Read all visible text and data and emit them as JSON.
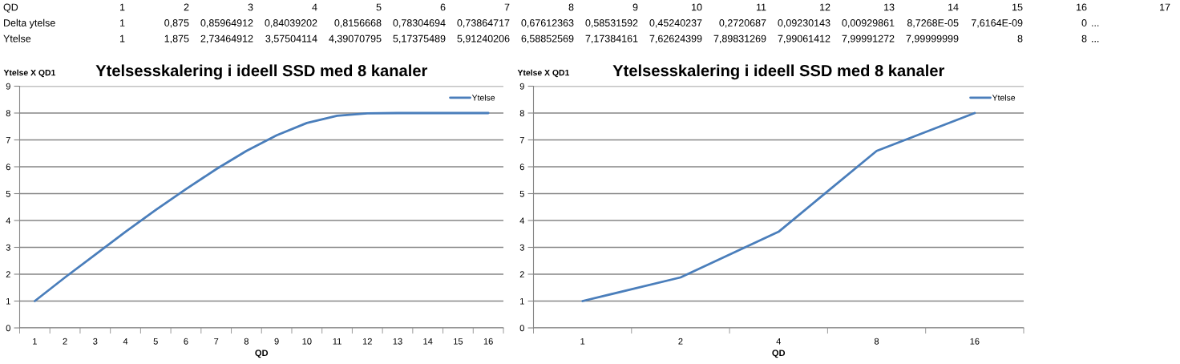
{
  "chart_data": [
    {
      "type": "heatmap",
      "xlabel": "QD",
      "categories": [
        "1",
        "2",
        "3",
        "4",
        "5",
        "6",
        "7",
        "8",
        "9",
        "10",
        "11",
        "12",
        "13",
        "14",
        "15",
        "16",
        "17"
      ],
      "y_categories": [
        "Delta ytelse",
        "Ytelse"
      ],
      "cells": [
        [
          null,
          null,
          null,
          null,
          null,
          null,
          null,
          null,
          null,
          null,
          null,
          null,
          null,
          null,
          null,
          null,
          null
        ],
        [
          null,
          null,
          null,
          null,
          null,
          null,
          null,
          null,
          null,
          null,
          null,
          null,
          null,
          null,
          null,
          null,
          null
        ]
      ],
      "cell_labels": [
        [
          "1",
          "0,875",
          "0,85964912",
          "0,84039202",
          "0,8156668",
          "0,78304694",
          "0,73864717",
          "0,67612363",
          "0,58531592",
          "0,45240237",
          "0,2720687",
          "0,09230143",
          "0,00929861",
          "8,7268E-05",
          "7,6164E-09",
          "0",
          "..."
        ],
        [
          "1",
          "1,875",
          "2,73464912",
          "3,57504114",
          "4,39070795",
          "5,17375489",
          "5,91240206",
          "6,58852569",
          "7,17384161",
          "7,62624399",
          "7,89831269",
          "7,99061412",
          "7,99991272",
          "7,99999999",
          "8",
          "8",
          "..."
        ]
      ]
    },
    {
      "type": "line",
      "title": "Ytelsesskalering i ideell SSD med 8 kanaler",
      "xlabel": "QD",
      "ylabel": "Ytelse X QD1",
      "categories": [
        "1",
        "2",
        "3",
        "4",
        "5",
        "6",
        "7",
        "8",
        "9",
        "10",
        "11",
        "12",
        "13",
        "14",
        "15",
        "16"
      ],
      "series": [
        {
          "name": "Ytelse",
          "color": "#4a7ebb",
          "values": [
            1,
            1.88,
            2.73,
            3.58,
            4.39,
            5.17,
            5.91,
            6.59,
            7.17,
            7.63,
            7.9,
            7.99,
            8,
            8,
            8,
            8
          ]
        }
      ],
      "ylim": [
        0,
        9
      ],
      "yticks": [
        0,
        1,
        2,
        3,
        4,
        5,
        6,
        7,
        8,
        9
      ],
      "grid": "y",
      "legend": "top right",
      "line_style": "solid"
    },
    {
      "type": "line",
      "title": "Ytelsesskalering i ideell SSD med 8 kanaler",
      "xlabel": "QD",
      "ylabel": "Ytelse X QD1",
      "categories": [
        "1",
        "2",
        "4",
        "8",
        "16"
      ],
      "series": [
        {
          "name": "Ytelse",
          "color": "#4a7ebb",
          "values": [
            1,
            1.88,
            3.58,
            6.59,
            8
          ]
        }
      ],
      "ylim": [
        0,
        9
      ],
      "yticks": [
        0,
        1,
        2,
        3,
        4,
        5,
        6,
        7,
        8,
        9
      ],
      "grid": "y",
      "legend": "top right",
      "line_style": "solid"
    }
  ]
}
